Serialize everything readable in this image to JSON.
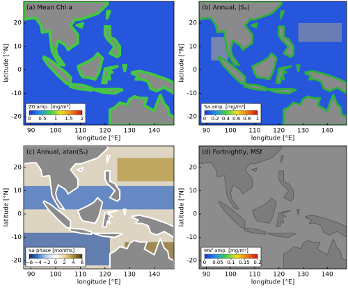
{
  "chart_data": [
    {
      "type": "map",
      "title": "(a) Mean Chl-a",
      "x_label": "longitude [°E]",
      "y_label": "latitude [°N]",
      "xlim": [
        87,
        148
      ],
      "ylim": [
        -23.5,
        29.2
      ],
      "xticks": [
        90,
        100,
        110,
        120,
        130,
        140
      ],
      "yticks": [
        -20,
        -10,
        0,
        10,
        20
      ],
      "colorbar": {
        "label": "Z0 amp. [mg/m³]",
        "clim": [
          0,
          2
        ],
        "ticks": [
          0,
          0.5,
          1,
          1.5,
          2
        ],
        "colormap": [
          "#1a2fd0",
          "#1f8ff0",
          "#3fd04a",
          "#e8e020",
          "#f08010",
          "#d01010"
        ]
      }
    },
    {
      "type": "map",
      "title": "(b) Annual, |Sₐ|",
      "x_label": "longitude [°E]",
      "y_label": "latitude [°N]",
      "xlim": [
        87,
        148
      ],
      "ylim": [
        -23.5,
        29.2
      ],
      "xticks": [
        90,
        100,
        110,
        120,
        130,
        140
      ],
      "yticks": [
        -20,
        -10,
        0,
        10,
        20
      ],
      "colorbar": {
        "label": "Sa amp. [mg/m³]",
        "clim": [
          0,
          1
        ],
        "ticks": [
          0,
          0.2,
          0.4,
          0.6,
          0.8,
          1
        ],
        "colormap": [
          "#1a2fd0",
          "#1f8ff0",
          "#3fd04a",
          "#e8e020",
          "#f08010",
          "#d01010"
        ]
      }
    },
    {
      "type": "map",
      "title": "(c) Annual, atan(Sₐ)",
      "x_label": "longitude [°E]",
      "y_label": "latitude [°N]",
      "xlim": [
        87,
        148
      ],
      "ylim": [
        -23.5,
        29.2
      ],
      "xticks": [
        90,
        100,
        110,
        120,
        130,
        140
      ],
      "yticks": [
        -20,
        -10,
        0,
        10,
        20
      ],
      "colorbar": {
        "label": "Sa phase [months]",
        "clim": [
          -6,
          6
        ],
        "ticks": [
          {
            "value": -6,
            "label": "−6"
          },
          {
            "value": -4,
            "label": "−4"
          },
          {
            "value": -2,
            "label": "−2"
          },
          0,
          2,
          4,
          6
        ],
        "colormap": [
          "#0a2a6a",
          "#3a7ad0",
          "#c0d8f0",
          "#ffffff",
          "#e8d8a0",
          "#b08a30",
          "#4a3810"
        ]
      }
    },
    {
      "type": "map",
      "title": "(d) Fortnightly, MSf",
      "x_label": "longitude [°E]",
      "y_label": "latitude [°N]",
      "xlim": [
        87,
        148
      ],
      "ylim": [
        -23.5,
        29.2
      ],
      "xticks": [
        90,
        100,
        110,
        120,
        130,
        140
      ],
      "yticks": [
        -20,
        -10,
        0,
        10,
        20
      ],
      "colorbar": {
        "label": "MSf amp. [mg/m³]",
        "clim": [
          0,
          0.2
        ],
        "ticks": [
          0,
          0.05,
          0.1,
          0.15,
          0.2
        ],
        "colormap": [
          "#1a2fd0",
          "#1f8ff0",
          "#3fd04a",
          "#e8e020",
          "#f08010",
          "#d01010"
        ]
      }
    }
  ]
}
